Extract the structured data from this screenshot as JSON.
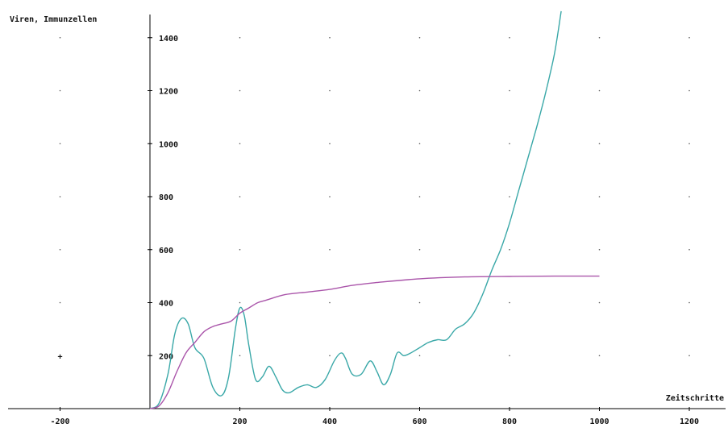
{
  "chart_data": {
    "type": "line",
    "title": "",
    "ylabel": "Viren, Immunzellen",
    "xlabel": "Zeitschritte",
    "xlim": [
      -300,
      1300
    ],
    "ylim": [
      0,
      1500
    ],
    "x_ticks": [
      -200,
      200,
      400,
      600,
      800,
      1000,
      1200
    ],
    "y_ticks": [
      200,
      400,
      600,
      800,
      1000,
      1200,
      1400
    ],
    "x_tick_labels": [
      "-200",
      "200",
      "400",
      "600",
      "800",
      "1000",
      "1200"
    ],
    "y_tick_labels": [
      "200",
      "400",
      "600",
      "800",
      "1000",
      "1200",
      "1400"
    ],
    "grid": "dotted",
    "markers": [
      {
        "x": -200,
        "y": 200,
        "symbol": "+"
      }
    ],
    "series": [
      {
        "color": "#3aa8a8",
        "x": [
          0,
          20,
          40,
          55,
          70,
          85,
          100,
          120,
          140,
          160,
          175,
          190,
          200,
          210,
          220,
          235,
          250,
          265,
          280,
          295,
          310,
          330,
          350,
          370,
          390,
          410,
          425,
          435,
          450,
          470,
          490,
          505,
          520,
          535,
          550,
          565,
          580,
          600,
          620,
          640,
          660,
          680,
          700,
          720,
          740,
          760,
          780,
          800,
          820,
          840,
          860,
          880,
          900,
          915
        ],
        "y": [
          0,
          20,
          130,
          280,
          340,
          320,
          230,
          190,
          80,
          50,
          120,
          300,
          380,
          350,
          240,
          110,
          120,
          160,
          120,
          70,
          60,
          80,
          90,
          80,
          110,
          180,
          210,
          190,
          130,
          130,
          180,
          140,
          90,
          130,
          210,
          200,
          210,
          230,
          250,
          260,
          260,
          300,
          320,
          360,
          430,
          520,
          600,
          700,
          820,
          940,
          1060,
          1190,
          1340,
          1500
        ]
      },
      {
        "color": "#aa55aa",
        "x": [
          0,
          20,
          40,
          60,
          80,
          100,
          120,
          140,
          160,
          180,
          200,
          220,
          240,
          260,
          300,
          350,
          400,
          450,
          500,
          600,
          700,
          800,
          900,
          1000
        ],
        "y": [
          0,
          10,
          60,
          140,
          210,
          250,
          290,
          310,
          320,
          330,
          360,
          380,
          400,
          410,
          430,
          440,
          450,
          465,
          475,
          490,
          497,
          499,
          500,
          500
        ]
      }
    ]
  }
}
